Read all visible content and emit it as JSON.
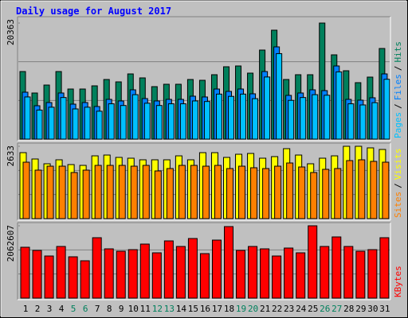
{
  "legend_separator": "/",
  "chart_data": [
    {
      "type": "bar",
      "title": "Daily usage for August 2017",
      "ylim": [
        0,
        20363
      ],
      "yticks": [
        20363
      ],
      "series": [
        {
          "name": "Hits",
          "color": "#00805c",
          "values": [
            11857,
            8091,
            9486,
            11857,
            8789,
            8789,
            9347,
            10463,
            10044,
            11439,
            10742,
            9207,
            9626,
            9626,
            10463,
            10323,
            11300,
            12695,
            12834,
            11579,
            15624,
            19112,
            10463,
            11300,
            11300,
            20363,
            14787,
            11997,
            9905,
            10881,
            15903
          ]
        },
        {
          "name": "Files",
          "color": "#0080ff",
          "values": [
            8231,
            5859,
            6417,
            8091,
            6138,
            6417,
            5720,
            6975,
            6696,
            8649,
            7115,
            6696,
            6975,
            6975,
            7533,
            7394,
            8789,
            8370,
            8789,
            7952,
            11858,
            16182,
            7673,
            8091,
            8649,
            8510,
            12834,
            6975,
            6836,
            7254,
            11439
          ]
        },
        {
          "name": "Pages",
          "color": "#00c0ff",
          "values": [
            7400,
            5100,
            5600,
            7300,
            5300,
            5600,
            4900,
            6200,
            5900,
            7800,
            6300,
            5900,
            6200,
            6200,
            6700,
            6600,
            7900,
            7500,
            7900,
            7100,
            10900,
            15000,
            6800,
            7300,
            7800,
            7700,
            11800,
            6200,
            6000,
            6400,
            10500
          ]
        }
      ]
    },
    {
      "type": "bar",
      "ylim": [
        0,
        2633
      ],
      "yticks": [
        2633
      ],
      "series": [
        {
          "name": "Visits",
          "color": "#ffff00",
          "values": [
            2401,
            2170,
            1996,
            2141,
            1967,
            1938,
            2285,
            2314,
            2228,
            2199,
            2141,
            2141,
            2141,
            2285,
            2141,
            2401,
            2401,
            2228,
            2343,
            2372,
            2199,
            2257,
            2546,
            2314,
            1996,
            2199,
            2285,
            2633,
            2633,
            2575,
            2517
          ]
        },
        {
          "name": "Sites",
          "color": "#ff8000",
          "values": [
            2054,
            1765,
            1909,
            1909,
            1678,
            1765,
            1938,
            1938,
            1938,
            1909,
            1938,
            1736,
            1823,
            1938,
            1938,
            1909,
            1938,
            1823,
            1909,
            1852,
            1823,
            1909,
            2025,
            1880,
            1678,
            1794,
            1823,
            2112,
            2141,
            2083,
            2054
          ]
        }
      ]
    },
    {
      "type": "bar",
      "ylim": [
        0,
        2062607
      ],
      "yticks": [
        2062607
      ],
      "series": [
        {
          "name": "KBytes",
          "color": "#ff0000",
          "values": [
            1450624,
            1359960,
            1201298,
            1473290,
            1178632,
            1065302,
            1722616,
            1405292,
            1337294,
            1382626,
            1541288,
            1291962,
            1631952,
            1473290,
            1699950,
            1269296,
            1654618,
            2039940,
            1359960,
            1473290,
            1405292,
            1201298,
            1427958,
            1291962,
            2062607,
            1473290,
            1745282,
            1473290,
            1337294,
            1382626,
            1722616
          ]
        }
      ],
      "categories": [
        "1",
        "2",
        "3",
        "4",
        "5",
        "6",
        "7",
        "8",
        "9",
        "10",
        "11",
        "12",
        "13",
        "14",
        "15",
        "16",
        "17",
        "18",
        "19",
        "20",
        "21",
        "22",
        "23",
        "24",
        "25",
        "26",
        "27",
        "28",
        "29",
        "30",
        "31"
      ],
      "category_colors": [
        "#000000",
        "#000000",
        "#000000",
        "#000000",
        "#00805c",
        "#00805c",
        "#000000",
        "#000000",
        "#000000",
        "#000000",
        "#000000",
        "#00805c",
        "#00805c",
        "#000000",
        "#000000",
        "#000000",
        "#000000",
        "#000000",
        "#00805c",
        "#00805c",
        "#000000",
        "#000000",
        "#000000",
        "#000000",
        "#000000",
        "#00805c",
        "#00805c",
        "#000000",
        "#000000",
        "#000000",
        "#000000"
      ]
    }
  ]
}
